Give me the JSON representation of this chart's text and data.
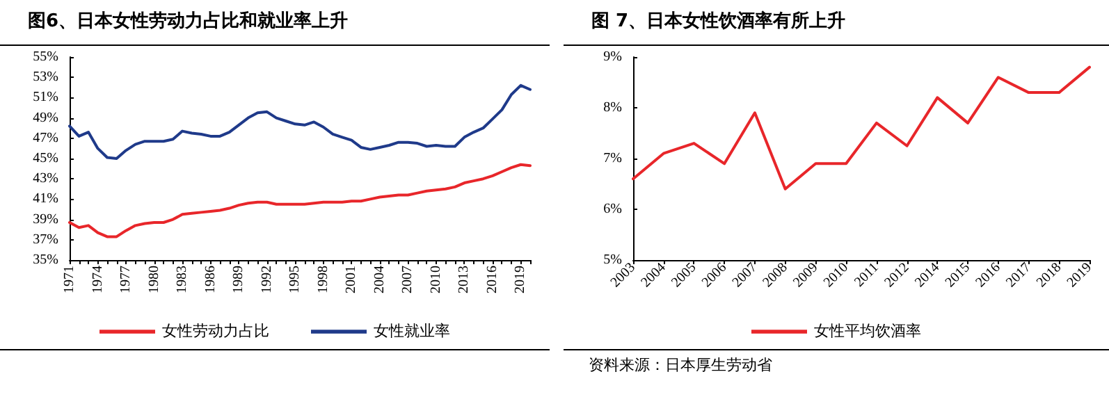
{
  "chart_data": [
    {
      "type": "line",
      "title": "图6、日本女性劳动力占比和就业率上升",
      "categories": [
        "1971",
        null,
        null,
        "1974",
        null,
        null,
        "1977",
        null,
        null,
        "1980",
        null,
        null,
        "1983",
        null,
        null,
        "1986",
        null,
        null,
        "1989",
        null,
        null,
        "1992",
        null,
        null,
        "1995",
        null,
        null,
        "1998",
        null,
        null,
        "2001",
        null,
        null,
        "2004",
        null,
        null,
        "2007",
        null,
        null,
        "2010",
        null,
        null,
        "2013",
        null,
        null,
        "2016",
        null,
        null,
        "2019",
        null
      ],
      "series": [
        {
          "name": "女性劳动力占比",
          "color": "#e8262a",
          "values": [
            38.7,
            38.2,
            38.4,
            37.7,
            37.3,
            37.3,
            37.9,
            38.4,
            38.6,
            38.7,
            38.7,
            39.0,
            39.5,
            39.6,
            39.7,
            39.8,
            39.9,
            40.1,
            40.4,
            40.6,
            40.7,
            40.7,
            40.5,
            40.5,
            40.5,
            40.5,
            40.6,
            40.7,
            40.7,
            40.7,
            40.8,
            40.8,
            41.0,
            41.2,
            41.3,
            41.4,
            41.4,
            41.6,
            41.8,
            41.9,
            42.0,
            42.2,
            42.6,
            42.8,
            43.0,
            43.3,
            43.7,
            44.1,
            44.4,
            44.3
          ]
        },
        {
          "name": "女性就业率",
          "color": "#1f3a8a",
          "values": [
            48.2,
            47.2,
            47.6,
            46.0,
            45.1,
            45.0,
            45.8,
            46.4,
            46.7,
            46.7,
            46.7,
            46.9,
            47.7,
            47.5,
            47.4,
            47.2,
            47.2,
            47.6,
            48.3,
            49.0,
            49.5,
            49.6,
            49.0,
            48.7,
            48.4,
            48.3,
            48.6,
            48.1,
            47.4,
            47.1,
            46.8,
            46.1,
            45.9,
            46.1,
            46.3,
            46.6,
            46.6,
            46.5,
            46.2,
            46.3,
            46.2,
            46.2,
            47.1,
            47.6,
            48.0,
            48.9,
            49.8,
            51.3,
            52.2,
            51.8
          ]
        }
      ],
      "ylim": [
        35,
        55
      ],
      "yticks": [
        {
          "value": 35,
          "label": "35%"
        },
        {
          "value": 37,
          "label": "37%"
        },
        {
          "value": 39,
          "label": "39%"
        },
        {
          "value": 41,
          "label": "41%"
        },
        {
          "value": 43,
          "label": "43%"
        },
        {
          "value": 45,
          "label": "45%"
        },
        {
          "value": 47,
          "label": "47%"
        },
        {
          "value": 49,
          "label": "49%"
        },
        {
          "value": 51,
          "label": "51%"
        },
        {
          "value": 53,
          "label": "53%"
        },
        {
          "value": 55,
          "label": "55%"
        }
      ],
      "grid": false,
      "legend": "bottom"
    },
    {
      "type": "line",
      "title": "图 7、日本女性饮酒率有所上升",
      "categories": [
        "2003",
        "2004",
        "2005",
        "2006",
        "2007",
        "2008",
        "2009",
        "2010",
        "2011",
        "2012",
        "2014",
        "2015",
        "2016",
        "2017",
        "2018",
        "2019"
      ],
      "series": [
        {
          "name": "女性平均饮酒率",
          "color": "#e8262a",
          "values": [
            6.6,
            7.1,
            7.3,
            6.9,
            7.9,
            6.4,
            6.9,
            6.9,
            7.7,
            7.25,
            8.2,
            7.7,
            8.6,
            8.3,
            8.3,
            8.8
          ]
        }
      ],
      "ylim": [
        5,
        9
      ],
      "yticks": [
        {
          "value": 5,
          "label": "5%"
        },
        {
          "value": 6,
          "label": "6%"
        },
        {
          "value": 7,
          "label": "7%"
        },
        {
          "value": 8,
          "label": "8%"
        },
        {
          "value": 9,
          "label": "9%"
        }
      ],
      "grid": false,
      "legend": "bottom",
      "annotations": [
        "资料来源：日本厚生劳动省"
      ]
    }
  ]
}
